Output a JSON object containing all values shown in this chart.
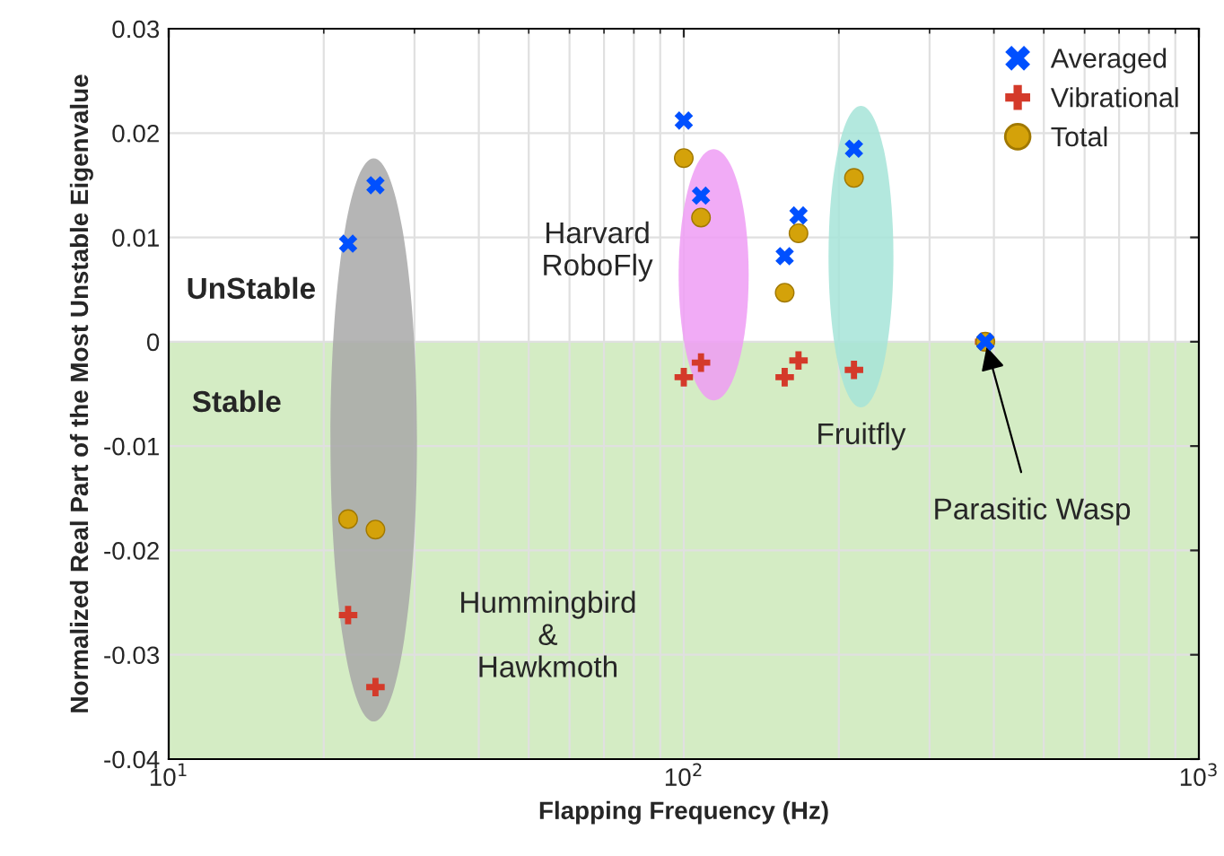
{
  "chart_data": {
    "type": "scatter",
    "xlabel": "Flapping Frequency (Hz)",
    "ylabel": "Normalized Real Part of the Most Unstable Eigenvalue",
    "log": "x",
    "xlim": [
      10,
      1000
    ],
    "xticks": [
      {
        "value": 10,
        "label": "10$^{1}$"
      },
      {
        "value": 100,
        "label": "10$^{2}$"
      },
      {
        "value": 1000,
        "label": "10$^{3}$"
      }
    ],
    "ylim": [
      -0.04,
      0.03
    ],
    "yticks": [
      -0.04,
      -0.03,
      -0.02,
      -0.01,
      0,
      0.01,
      0.02,
      0.03
    ],
    "grid": true,
    "legend": "top right",
    "bands": [
      {
        "axis": "y",
        "from": -0.04,
        "to": 0,
        "color": "#d4ecc4"
      }
    ],
    "series": [
      {
        "name": "Averaged",
        "color": "#0050ff",
        "marker": "cross",
        "x": [
          22.3,
          25.2,
          100,
          108,
          157,
          167,
          214,
          385
        ],
        "values": [
          0.0094,
          0.015,
          0.0212,
          0.014,
          0.0082,
          0.0121,
          0.0185,
          0
        ]
      },
      {
        "name": "Vibrational",
        "color": "#d43a2a",
        "marker": "plus",
        "x": [
          22.3,
          25.2,
          100,
          108,
          157,
          167,
          214,
          383
        ],
        "values": [
          -0.0262,
          -0.0331,
          -0.0034,
          -0.002,
          -0.0034,
          -0.0018,
          -0.0027,
          0
        ]
      },
      {
        "name": "Total",
        "color": "#d4a20a",
        "marker": "circle",
        "x": [
          22.3,
          25.2,
          100,
          108,
          157,
          167,
          214,
          385
        ],
        "values": [
          -0.017,
          -0.018,
          0.0176,
          0.0119,
          0.0047,
          0.0104,
          0.0157,
          0
        ]
      }
    ],
    "annotations": [
      "UnStable",
      "Stable",
      "Harvard\nRoboFly",
      "Hummingbird\n&\nHawkmoth",
      "Fruitfly",
      {
        "text": "Parasitic Wasp",
        "x": 385,
        "y": 0
      }
    ]
  }
}
